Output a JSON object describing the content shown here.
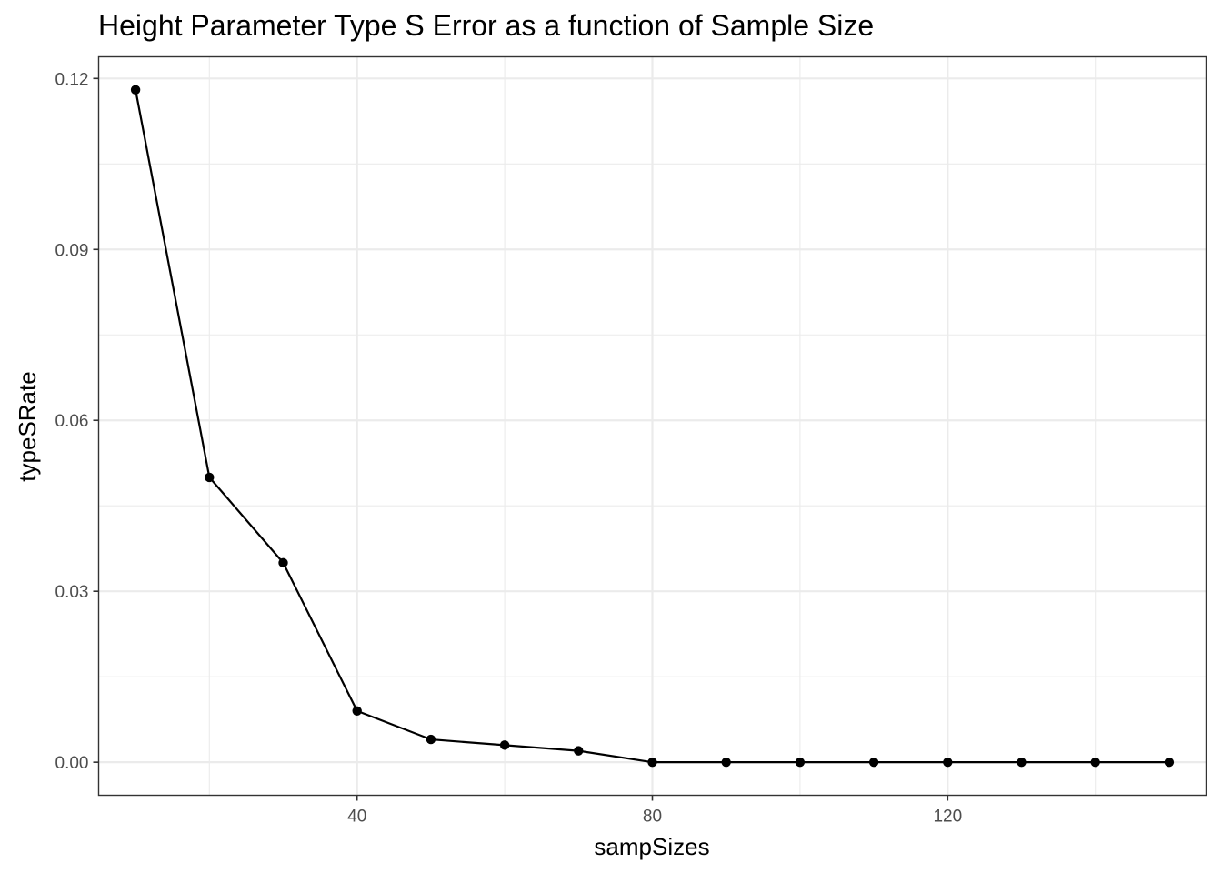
{
  "chart_data": {
    "type": "line",
    "title": "Height Parameter Type S Error as a function of Sample Size",
    "xlabel": "sampSizes",
    "ylabel": "typeSRate",
    "xlim": [
      5,
      155
    ],
    "ylim": [
      -0.0058,
      0.1238
    ],
    "x_ticks": [
      40,
      80,
      120
    ],
    "x_tick_labels": [
      "40",
      "80",
      "120"
    ],
    "x_minor_ticks": [
      20,
      60,
      100,
      140
    ],
    "y_ticks": [
      0.0,
      0.03,
      0.06,
      0.09,
      0.12
    ],
    "y_tick_labels": [
      "0.00",
      "0.03",
      "0.06",
      "0.09",
      "0.12"
    ],
    "y_minor_ticks": [
      0.015,
      0.045,
      0.075,
      0.105
    ],
    "grid": true,
    "series": [
      {
        "x": [
          10,
          20,
          30,
          40,
          50,
          60,
          70,
          80,
          90,
          100,
          110,
          120,
          130,
          140,
          150
        ],
        "y": [
          0.118,
          0.05,
          0.035,
          0.009,
          0.004,
          0.003,
          0.002,
          0.0,
          0.0,
          0.0,
          0.0,
          0.0,
          0.0,
          0.0,
          0.0
        ],
        "color": "#000000"
      }
    ]
  }
}
